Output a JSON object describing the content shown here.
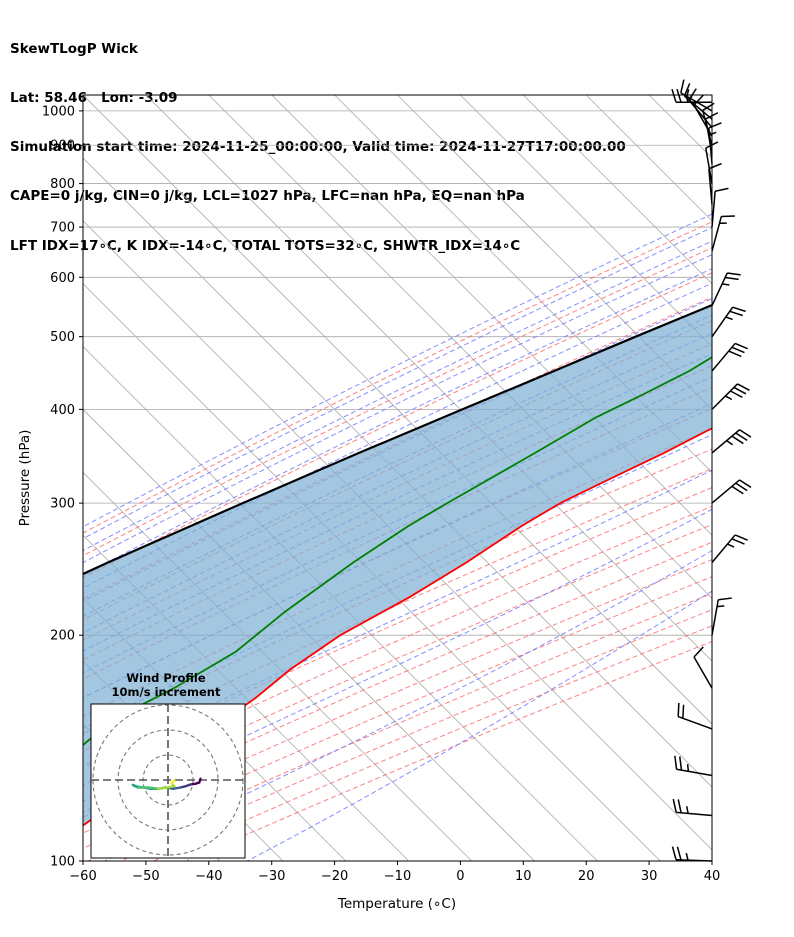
{
  "header": {
    "line1": "SkewTLogP Wick",
    "line2": "Lat: 58.46   Lon: -3.09",
    "line3": "Simulation start time: 2024-11-25_00:00:00, Valid time: 2024-11-27T17:00:00.00",
    "line4": "CAPE=0 j/kg, CIN=0 j/kg, LCL=1027 hPa, LFC=nan hPa, EQ=nan hPa",
    "line5": "LFT IDX=17∘C, K IDX=-14∘C, TOTAL TOTS=32∘C, SHWTR_IDX=14∘C"
  },
  "chart_data": {
    "type": "skewt-logp",
    "xlabel": "Temperature (∘C)",
    "ylabel": "Pressure (hPa)",
    "xlim": [
      -60,
      40
    ],
    "ylim": [
      1050,
      100
    ],
    "x_ticks": [
      -60,
      -50,
      -40,
      -30,
      -20,
      -10,
      0,
      10,
      20,
      30,
      40
    ],
    "x_tick_labels": [
      "−60",
      "−50",
      "−40",
      "−30",
      "−20",
      "−10",
      "0",
      "10",
      "20",
      "30",
      "40"
    ],
    "y_ticks": [
      1000,
      900,
      800,
      700,
      600,
      500,
      400,
      300,
      200,
      100
    ],
    "grid": true,
    "colors": {
      "temperature": "#ff0000",
      "dewpoint": "#008000",
      "parcel": "#000000",
      "cin_shade": "#7fb0d5",
      "dry_adiabats": "#ff6b6b",
      "moist_adiabats": "#6b7bff",
      "mixing_ratio": "#9b59d0",
      "isotherms": "#aaaaaa"
    },
    "temperature": [
      {
        "p": 1027,
        "t": 0.0
      },
      {
        "p": 1015,
        "t": 4.5
      },
      {
        "p": 980,
        "t": 3.3
      },
      {
        "p": 950,
        "t": 1.5
      },
      {
        "p": 900,
        "t": -0.6
      },
      {
        "p": 870,
        "t": 0.2
      },
      {
        "p": 840,
        "t": 1.1
      },
      {
        "p": 810,
        "t": 2.5
      },
      {
        "p": 780,
        "t": 2.2
      },
      {
        "p": 750,
        "t": 1.8
      },
      {
        "p": 700,
        "t": -0.5
      },
      {
        "p": 650,
        "t": -3.5
      },
      {
        "p": 600,
        "t": -7.0
      },
      {
        "p": 550,
        "t": -11.0
      },
      {
        "p": 500,
        "t": -15.5
      },
      {
        "p": 450,
        "t": -20.5
      },
      {
        "p": 400,
        "t": -26.0
      },
      {
        "p": 350,
        "t": -32.5
      },
      {
        "p": 320,
        "t": -37.5
      },
      {
        "p": 300,
        "t": -41.0
      },
      {
        "p": 280,
        "t": -43.5
      },
      {
        "p": 250,
        "t": -46.5
      },
      {
        "p": 225,
        "t": -50.0
      },
      {
        "p": 200,
        "t": -55.0
      },
      {
        "p": 180,
        "t": -57.5
      },
      {
        "p": 165,
        "t": -58.5
      },
      {
        "p": 150,
        "t": -60.5
      },
      {
        "p": 130,
        "t": -63.0
      },
      {
        "p": 115,
        "t": -65.0
      },
      {
        "p": 100,
        "t": -68.0
      }
    ],
    "dewpoint": [
      {
        "p": 1027,
        "t": -1.0
      },
      {
        "p": 1015,
        "t": -0.7
      },
      {
        "p": 980,
        "t": -1.5
      },
      {
        "p": 950,
        "t": -3.5
      },
      {
        "p": 900,
        "t": -7.5
      },
      {
        "p": 880,
        "t": -10.0
      },
      {
        "p": 850,
        "t": -21.0
      },
      {
        "p": 820,
        "t": -44.0
      },
      {
        "p": 790,
        "t": -42.0
      },
      {
        "p": 750,
        "t": -37.0
      },
      {
        "p": 700,
        "t": -38.0
      },
      {
        "p": 650,
        "t": -42.0
      },
      {
        "p": 600,
        "t": -45.0
      },
      {
        "p": 550,
        "t": -42.0
      },
      {
        "p": 520,
        "t": -38.0
      },
      {
        "p": 500,
        "t": -38.0
      },
      {
        "p": 450,
        "t": -41.5
      },
      {
        "p": 420,
        "t": -45.0
      },
      {
        "p": 390,
        "t": -49.0
      },
      {
        "p": 350,
        "t": -53.0
      },
      {
        "p": 300,
        "t": -59.0
      },
      {
        "p": 280,
        "t": -61.5
      },
      {
        "p": 250,
        "t": -64.5
      },
      {
        "p": 215,
        "t": -67.5
      },
      {
        "p": 190,
        "t": -69.0
      },
      {
        "p": 170,
        "t": -73.0
      },
      {
        "p": 160,
        "t": -76.0
      },
      {
        "p": 150,
        "t": -78.0
      },
      {
        "p": 120,
        "t": -80.0
      },
      {
        "p": 100,
        "t": -84.0
      }
    ],
    "parcel": [
      {
        "p": 1027,
        "t": -0.6
      },
      {
        "p": 1000,
        "t": -2.8
      },
      {
        "p": 950,
        "t": -6.5
      },
      {
        "p": 900,
        "t": -10.8
      },
      {
        "p": 850,
        "t": -15.2
      },
      {
        "p": 800,
        "t": -20.0
      },
      {
        "p": 750,
        "t": -25.0
      },
      {
        "p": 700,
        "t": -30.5
      },
      {
        "p": 650,
        "t": -36.0
      },
      {
        "p": 600,
        "t": -42.0
      },
      {
        "p": 550,
        "t": -48.5
      },
      {
        "p": 500,
        "t": -55.5
      },
      {
        "p": 450,
        "t": -63.0
      },
      {
        "p": 400,
        "t": -71.5
      },
      {
        "p": 350,
        "t": -81.0
      },
      {
        "p": 300,
        "t": -91.5
      },
      {
        "p": 250,
        "t": -103.5
      },
      {
        "p": 200,
        "t": -117.0
      },
      {
        "p": 150,
        "t": -133.5
      },
      {
        "p": 100,
        "t": -155.0
      }
    ],
    "wind_barbs": [
      {
        "p": 1027,
        "speed_kt": 25,
        "dir": 270
      },
      {
        "p": 1000,
        "speed_kt": 15,
        "dir": 300
      },
      {
        "p": 975,
        "speed_kt": 15,
        "dir": 310
      },
      {
        "p": 950,
        "speed_kt": 10,
        "dir": 320
      },
      {
        "p": 925,
        "speed_kt": 10,
        "dir": 330
      },
      {
        "p": 900,
        "speed_kt": 10,
        "dir": 345
      },
      {
        "p": 875,
        "speed_kt": 10,
        "dir": 350
      },
      {
        "p": 850,
        "speed_kt": 15,
        "dir": 355
      },
      {
        "p": 800,
        "speed_kt": 10,
        "dir": 350
      },
      {
        "p": 750,
        "speed_kt": 10,
        "dir": 355
      },
      {
        "p": 700,
        "speed_kt": 10,
        "dir": 5
      },
      {
        "p": 650,
        "speed_kt": 15,
        "dir": 15
      },
      {
        "p": 550,
        "speed_kt": 25,
        "dir": 25
      },
      {
        "p": 500,
        "speed_kt": 25,
        "dir": 35
      },
      {
        "p": 450,
        "speed_kt": 30,
        "dir": 40
      },
      {
        "p": 400,
        "speed_kt": 35,
        "dir": 45
      },
      {
        "p": 350,
        "speed_kt": 35,
        "dir": 50
      },
      {
        "p": 300,
        "speed_kt": 30,
        "dir": 50
      },
      {
        "p": 250,
        "speed_kt": 25,
        "dir": 40
      },
      {
        "p": 200,
        "speed_kt": 15,
        "dir": 10
      },
      {
        "p": 170,
        "speed_kt": 10,
        "dir": 330
      },
      {
        "p": 150,
        "speed_kt": 20,
        "dir": 290
      },
      {
        "p": 130,
        "speed_kt": 25,
        "dir": 280
      },
      {
        "p": 115,
        "speed_kt": 25,
        "dir": 275
      },
      {
        "p": 100,
        "speed_kt": 25,
        "dir": 272
      }
    ],
    "hodograph": {
      "title": "Wind Profile",
      "subtitle": "10m/s increment",
      "ring_spacing_ms": 10,
      "rings": 3,
      "points": [
        {
          "u": 13.0,
          "v": 0.5
        },
        {
          "u": 12.5,
          "v": -1.0
        },
        {
          "u": 11.0,
          "v": -1.5
        },
        {
          "u": 9.0,
          "v": -1.8
        },
        {
          "u": 7.0,
          "v": -2.5
        },
        {
          "u": 5.0,
          "v": -3.0
        },
        {
          "u": 2.0,
          "v": -3.5
        },
        {
          "u": -1.0,
          "v": -3.0
        },
        {
          "u": -4.0,
          "v": -3.5
        },
        {
          "u": -7.0,
          "v": -3.5
        },
        {
          "u": -10.0,
          "v": -3.0
        },
        {
          "u": -13.0,
          "v": -2.5
        },
        {
          "u": -14.0,
          "v": -2.0
        },
        {
          "u": -12.0,
          "v": -3.0
        },
        {
          "u": -8.0,
          "v": -3.0
        },
        {
          "u": -4.0,
          "v": -3.5
        },
        {
          "u": 0.0,
          "v": -3.0
        },
        {
          "u": 2.5,
          "v": -2.5
        },
        {
          "u": 1.5,
          "v": -1.5
        },
        {
          "u": 2.0,
          "v": -0.5
        },
        {
          "u": 2.5,
          "v": -0.3
        }
      ]
    }
  }
}
